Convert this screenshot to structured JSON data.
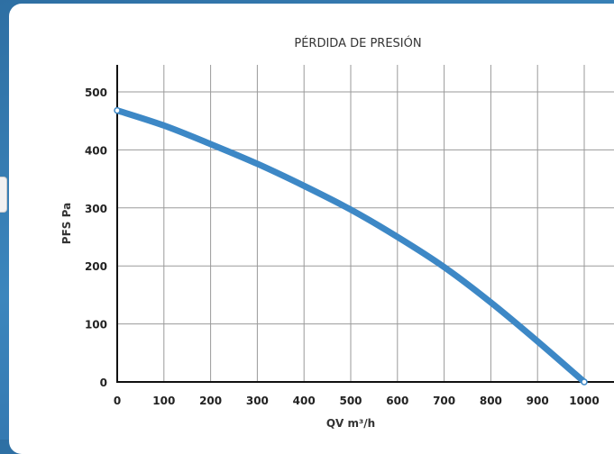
{
  "chart_data": {
    "type": "line",
    "title": "PÉRDIDA DE PRESIÓN",
    "xlabel": "QV m³/h",
    "ylabel": "PFS Pa",
    "xlim": [
      0,
      1000
    ],
    "ylim": [
      0,
      500
    ],
    "xticks": [
      "0",
      "100",
      "200",
      "300",
      "400",
      "500",
      "600",
      "700",
      "800",
      "900",
      "1000"
    ],
    "yticks": [
      "0",
      "100",
      "200",
      "300",
      "400",
      "500"
    ],
    "grid": true,
    "series": [
      {
        "color": "#3d88c6",
        "x": [
          0,
          100,
          200,
          300,
          400,
          500,
          600,
          700,
          800,
          900,
          1000
        ],
        "y": [
          468,
          442,
          410,
          376,
          338,
          297,
          250,
          198,
          137,
          70,
          0
        ]
      }
    ]
  }
}
